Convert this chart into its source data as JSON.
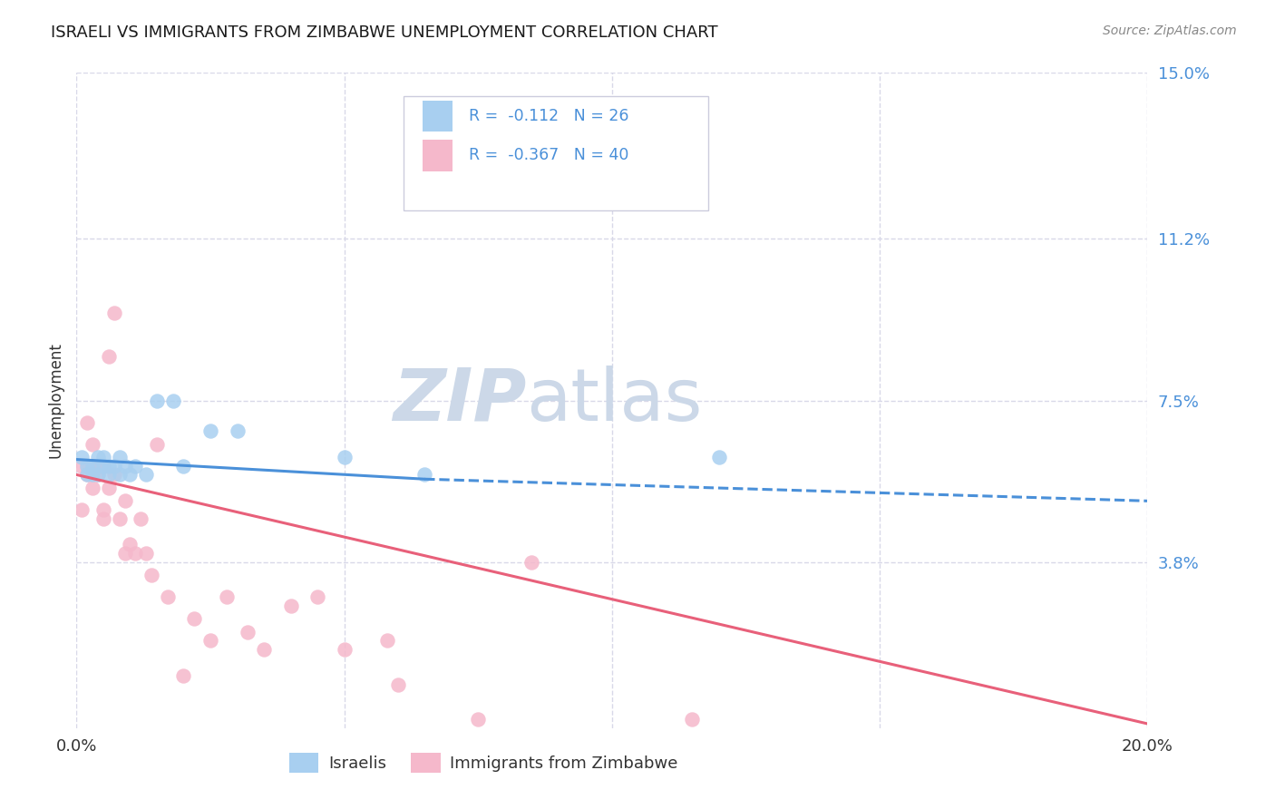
{
  "title": "ISRAELI VS IMMIGRANTS FROM ZIMBABWE UNEMPLOYMENT CORRELATION CHART",
  "source": "Source: ZipAtlas.com",
  "ylabel": "Unemployment",
  "xlim": [
    0,
    0.2
  ],
  "ylim": [
    0,
    0.15
  ],
  "yticks": [
    0.038,
    0.075,
    0.112,
    0.15
  ],
  "ytick_labels": [
    "3.8%",
    "7.5%",
    "11.2%",
    "15.0%"
  ],
  "xticks": [
    0.0,
    0.05,
    0.1,
    0.15,
    0.2
  ],
  "legend_label1": "Israelis",
  "legend_label2": "Immigrants from Zimbabwe",
  "R1": -0.112,
  "N1": 26,
  "R2": -0.367,
  "N2": 40,
  "color1": "#a8cff0",
  "color2": "#f5b8cb",
  "line_color1": "#4a90d9",
  "line_color2": "#e8607a",
  "background_color": "#ffffff",
  "grid_color": "#d8d8e8",
  "watermark_zip": "ZIP",
  "watermark_atlas": "atlas",
  "watermark_color": "#ccd8e8",
  "title_color": "#1a1a1a",
  "axis_label_color": "#333333",
  "tick_label_color_y": "#4a90d9",
  "tick_label_color_x": "#333333",
  "source_color": "#888888",
  "israelis_x": [
    0.001,
    0.002,
    0.002,
    0.003,
    0.003,
    0.004,
    0.004,
    0.005,
    0.005,
    0.006,
    0.006,
    0.007,
    0.008,
    0.008,
    0.009,
    0.01,
    0.011,
    0.013,
    0.015,
    0.018,
    0.02,
    0.025,
    0.03,
    0.05,
    0.065,
    0.12
  ],
  "israelis_y": [
    0.062,
    0.06,
    0.058,
    0.06,
    0.058,
    0.062,
    0.058,
    0.06,
    0.062,
    0.06,
    0.058,
    0.06,
    0.062,
    0.058,
    0.06,
    0.058,
    0.06,
    0.058,
    0.075,
    0.075,
    0.06,
    0.068,
    0.068,
    0.062,
    0.058,
    0.062
  ],
  "zimbabwe_x": [
    0.001,
    0.001,
    0.002,
    0.002,
    0.003,
    0.003,
    0.003,
    0.004,
    0.004,
    0.005,
    0.005,
    0.005,
    0.006,
    0.006,
    0.007,
    0.007,
    0.008,
    0.009,
    0.009,
    0.01,
    0.011,
    0.012,
    0.013,
    0.014,
    0.015,
    0.017,
    0.02,
    0.022,
    0.025,
    0.028,
    0.032,
    0.035,
    0.04,
    0.045,
    0.05,
    0.058,
    0.06,
    0.075,
    0.085,
    0.115
  ],
  "zimbabwe_y": [
    0.06,
    0.05,
    0.058,
    0.07,
    0.06,
    0.055,
    0.065,
    0.058,
    0.06,
    0.048,
    0.05,
    0.06,
    0.055,
    0.085,
    0.095,
    0.058,
    0.048,
    0.04,
    0.052,
    0.042,
    0.04,
    0.048,
    0.04,
    0.035,
    0.065,
    0.03,
    0.012,
    0.025,
    0.02,
    0.03,
    0.022,
    0.018,
    0.028,
    0.03,
    0.018,
    0.02,
    0.01,
    0.002,
    0.038,
    0.002
  ],
  "blue_line_x0": 0.0,
  "blue_line_y0": 0.0615,
  "blue_line_x1": 0.065,
  "blue_line_y1": 0.057,
  "blue_line_dash_x0": 0.065,
  "blue_line_dash_y0": 0.057,
  "blue_line_dash_x1": 0.2,
  "blue_line_dash_y1": 0.052,
  "pink_line_x0": 0.0,
  "pink_line_y0": 0.058,
  "pink_line_x1": 0.2,
  "pink_line_y1": 0.001
}
